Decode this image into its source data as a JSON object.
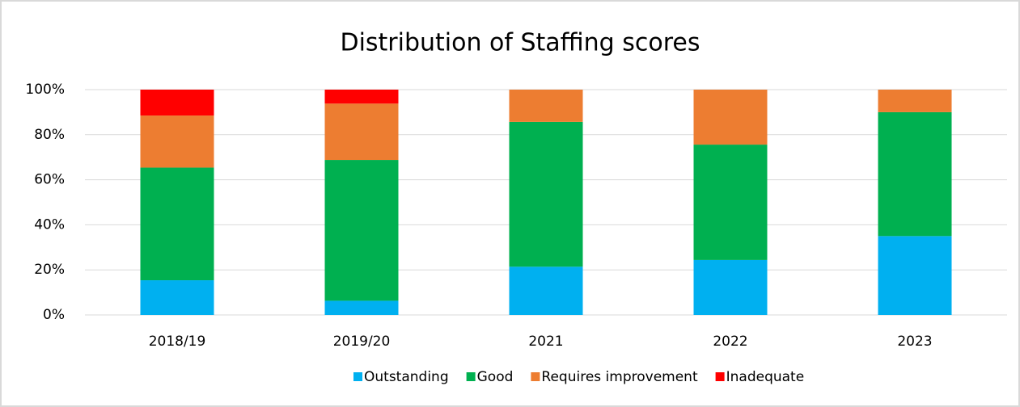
{
  "chart_data": {
    "type": "stacked_bar",
    "title": "Distribution of Staffing scores",
    "categories": [
      "2018/19",
      "2019/20",
      "2021",
      "2022",
      "2023"
    ],
    "series": [
      {
        "name": "Outstanding",
        "color": "#00b0f0",
        "values": [
          15.4,
          6.3,
          21.4,
          24.4,
          35
        ]
      },
      {
        "name": "Good",
        "color": "#00b050",
        "values": [
          50.0,
          62.5,
          64.3,
          51.2,
          55
        ]
      },
      {
        "name": "Requires improvement",
        "color": "#ed7d31",
        "values": [
          23.1,
          25.0,
          14.3,
          24.4,
          10
        ]
      },
      {
        "name": "Inadequate",
        "color": "#ff0000",
        "values": [
          11.5,
          6.2,
          0,
          0,
          0
        ]
      }
    ],
    "ylim": [
      0,
      100
    ],
    "yticks": [
      {
        "value": 0,
        "label": "0%"
      },
      {
        "value": 20,
        "label": "20%"
      },
      {
        "value": 40,
        "label": "40%"
      },
      {
        "value": 60,
        "label": "60%"
      },
      {
        "value": 80,
        "label": "80%"
      },
      {
        "value": 100,
        "label": "100%"
      }
    ],
    "grid": true,
    "legend": "bottom"
  }
}
